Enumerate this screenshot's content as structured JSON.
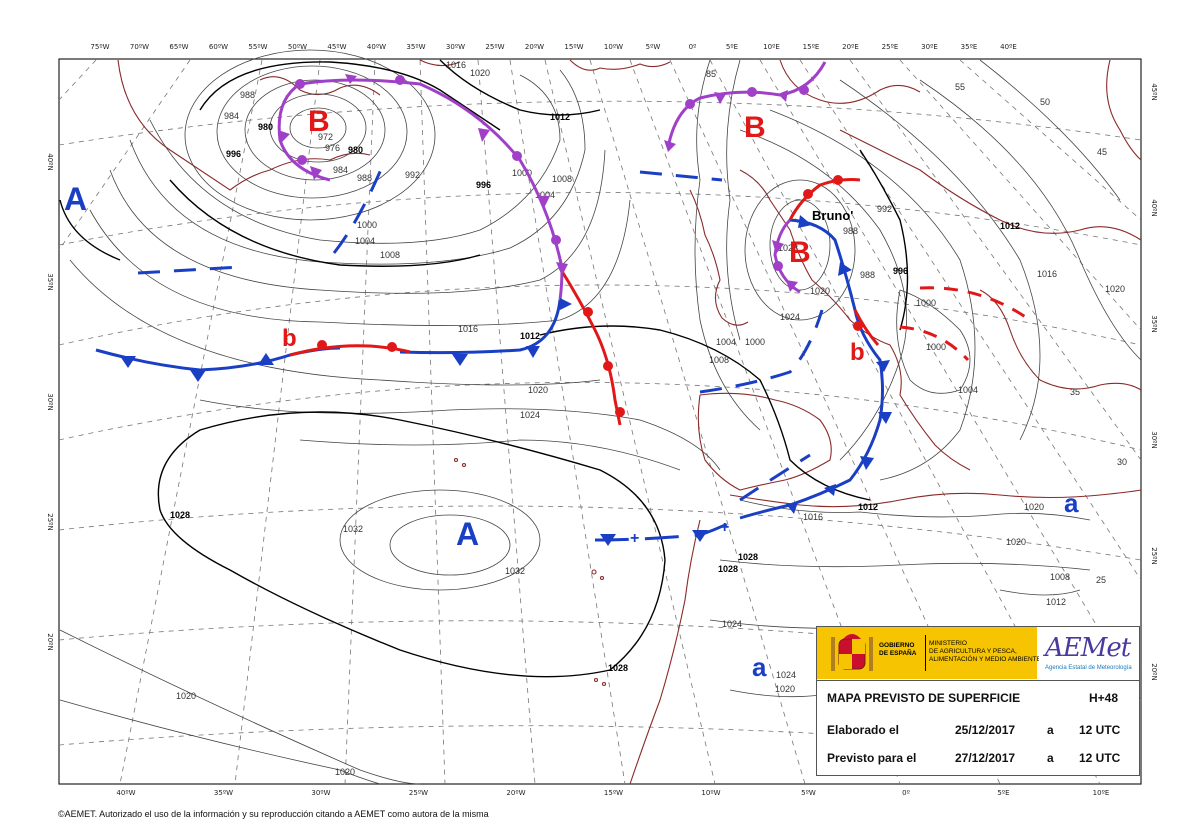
{
  "map": {
    "lon_top": [
      "75ºW",
      "70ºW",
      "65ºW",
      "60ºW",
      "55ºW",
      "50ºW",
      "45ºW",
      "40ºW",
      "35ºW",
      "30ºW",
      "25ºW",
      "20ºW",
      "15ºW",
      "10ºW",
      "5ºW",
      "0º",
      "5ºE",
      "10ºE",
      "15ºE",
      "20ºE",
      "25ºE",
      "30ºE",
      "35ºE",
      "40ºE"
    ],
    "lon_bottom": [
      "40ºW",
      "35ºW",
      "30ºW",
      "25ºW",
      "20ºW",
      "15ºW",
      "10ºW",
      "5ºW",
      "0º",
      "5ºE",
      "10ºE"
    ],
    "lat_left": [
      "40ºN",
      "35ºN",
      "30ºN",
      "25ºN",
      "20ºN"
    ],
    "lat_right": [
      "45ºN",
      "40ºN",
      "35ºN",
      "30ºN",
      "25ºN",
      "20ºN"
    ],
    "isobar_labels": [
      "1016",
      "1020",
      "1012",
      "1008",
      "1004",
      "1000",
      "996",
      "992",
      "988",
      "984",
      "980",
      "976",
      "972",
      "988",
      "984",
      "980",
      "996",
      "1000",
      "1004",
      "1008",
      "1012",
      "1016",
      "1020",
      "1024",
      "1028",
      "1032",
      "1032",
      "1028",
      "1028",
      "1028",
      "1024",
      "1024",
      "1020",
      "1020",
      "1020",
      "1016",
      "1012",
      "992",
      "988",
      "988",
      "996",
      "1000",
      "1004",
      "1008",
      "1012",
      "1016",
      "1020",
      "1020",
      "1020",
      "1000",
      "1000",
      "1004",
      "1008",
      "1012",
      "1020",
      "1024",
      "1028",
      "85",
      "55",
      "50",
      "45",
      "35",
      "30",
      "25"
    ],
    "systems": {
      "low_1": "B",
      "low_2": "B",
      "low_3": "B",
      "small_low_1": "b",
      "small_low_2": "b",
      "high_1": "A",
      "high_2": "A",
      "small_high_1": "a",
      "small_high_2": "a"
    },
    "storm_name": "Bruno'",
    "colors": {
      "cold_front": "#1a3fc4",
      "warm_front": "#e01818",
      "occluded_front": "#a040c8",
      "trough": "#1a3fc4",
      "coast": "#8b2a2a"
    }
  },
  "infobox": {
    "gov_title": "GOBIERNO\nDE ESPAÑA",
    "ministry": "MINISTERIO\nDE AGRICULTURA Y PESCA,\nALIMENTACIÓN Y MEDIO AMBIENTE",
    "brand": "AEMet",
    "brand_sub": "Agencia Estatal de Meteorología",
    "map_title": "MAPA PREVISTO DE SUPERFICIE",
    "horizon": "H+48",
    "made_label": "Elaborado el",
    "made_date": "25/12/2017",
    "made_at": "a",
    "made_time": "12 UTC",
    "valid_label": "Previsto para el",
    "valid_date": "27/12/2017",
    "valid_at": "a",
    "valid_time": "12 UTC"
  },
  "footer": "©AEMET. Autorizado el uso de la información y su reproducción citando a AEMET como autora de la misma"
}
